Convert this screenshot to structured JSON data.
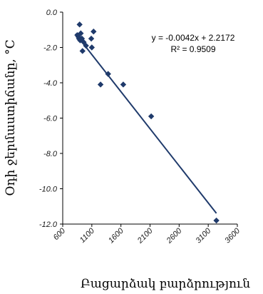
{
  "chart_data": {
    "type": "scatter",
    "title": "",
    "xlabel": "Բացարձակ բարձրություն",
    "ylabel": "Օդի ջերմաստիճանը, °C",
    "xlim": [
      600,
      3600
    ],
    "ylim": [
      -12.0,
      0.0
    ],
    "x_ticks": [
      "600",
      "1100",
      "1600",
      "2100",
      "2600",
      "3100",
      "3600"
    ],
    "y_ticks": [
      "0.0",
      "-2.0",
      "-4.0",
      "-6.0",
      "-8.0",
      "-10.0",
      "-12.0"
    ],
    "series": [
      {
        "points": [
          [
            850,
            -1.3
          ],
          [
            870,
            -1.4
          ],
          [
            880,
            -1.5
          ],
          [
            890,
            -0.7
          ],
          [
            900,
            -1.6
          ],
          [
            910,
            -1.2
          ],
          [
            930,
            -1.5
          ],
          [
            940,
            -2.2
          ],
          [
            960,
            -1.7
          ],
          [
            1000,
            -1.9
          ],
          [
            1090,
            -1.5
          ],
          [
            1100,
            -2.0
          ],
          [
            1130,
            -1.1
          ],
          [
            1250,
            -4.1
          ],
          [
            1380,
            -3.5
          ],
          [
            1640,
            -4.1
          ],
          [
            2120,
            -5.9
          ],
          [
            3240,
            -11.8
          ]
        ]
      }
    ],
    "trendline": {
      "slope": -0.0042,
      "intercept": 2.2172,
      "equation": "y = -0.0042x + 2.2172",
      "r2": "R² = 0.9509"
    },
    "grid": false,
    "legend": "none",
    "marker_color": "#1f3a6b",
    "line_color": "#1f3a6b"
  }
}
